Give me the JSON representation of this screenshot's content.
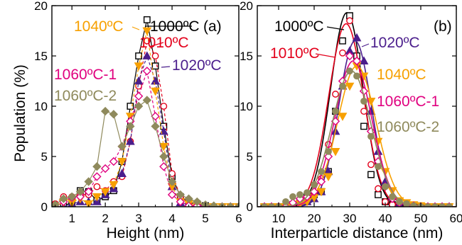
{
  "figure": {
    "ylabel": "Population (%)",
    "panels_text": [
      "(a)",
      "(b)"
    ]
  },
  "chart_data": [
    {
      "type": "line",
      "panel": "(a)",
      "xlabel": "Height (nm)",
      "ylabel": "Population (%)",
      "xlim": [
        0.4,
        6
      ],
      "ylim": [
        0,
        20
      ],
      "xticks": [
        1,
        2,
        3,
        4,
        5,
        6
      ],
      "yticks": [
        0,
        5,
        10,
        15,
        20
      ],
      "grid": false,
      "legend": "labels placed next to curves",
      "series": [
        {
          "name": "1000ºC",
          "color": "#000000",
          "marker": "square",
          "line": "solid",
          "x": [
            0.5,
            0.75,
            1.0,
            1.25,
            1.5,
            1.75,
            2.0,
            2.25,
            2.5,
            2.75,
            3.0,
            3.25,
            3.5,
            3.75,
            4.0,
            4.25,
            4.5,
            4.75,
            5.0,
            5.25,
            5.5,
            5.75,
            6.0
          ],
          "y": [
            0,
            0,
            0.5,
            1.6,
            1.5,
            0.6,
            1.0,
            1.6,
            4.5,
            10.0,
            15.0,
            18.6,
            14.0,
            8.0,
            3.0,
            1.0,
            0.4,
            0.3,
            0.1,
            0,
            0,
            0,
            0
          ]
        },
        {
          "name": "1010ºC",
          "color": "#e3001b",
          "marker": "circle",
          "line": "dash",
          "x": [
            0.5,
            0.75,
            1.0,
            1.25,
            1.5,
            1.75,
            2.0,
            2.25,
            2.5,
            2.75,
            3.0,
            3.25,
            3.5,
            3.75,
            4.0,
            4.25,
            4.5,
            4.75,
            5.0,
            5.25,
            5.5,
            5.75,
            6.0
          ],
          "y": [
            0.3,
            1.0,
            1.0,
            1.2,
            1.2,
            2.0,
            1.6,
            2.5,
            3.0,
            6.5,
            12.0,
            16.5,
            15.0,
            10.0,
            3.3,
            1.0,
            0.3,
            0.1,
            0,
            0,
            0,
            0,
            0
          ]
        },
        {
          "name": "1020ºC",
          "color": "#4b1e8c",
          "marker": "triangle-up",
          "line": "dash",
          "x": [
            0.5,
            0.75,
            1.0,
            1.25,
            1.5,
            1.75,
            2.0,
            2.25,
            2.5,
            2.75,
            3.0,
            3.25,
            3.5,
            3.75,
            4.0,
            4.25,
            4.5,
            4.75,
            5.0,
            5.25,
            5.5,
            5.75,
            6.0
          ],
          "y": [
            0,
            0,
            0.3,
            0.5,
            0.5,
            0.5,
            1.2,
            1.8,
            3.3,
            6.5,
            12.5,
            15.0,
            12.5,
            7.5,
            2.0,
            0.4,
            0.2,
            0.2,
            0.1,
            0,
            0,
            0,
            0
          ]
        },
        {
          "name": "1040ºC",
          "color": "#f7a000",
          "marker": "triangle-down",
          "line": "dash",
          "x": [
            0.5,
            0.75,
            1.0,
            1.25,
            1.5,
            1.75,
            2.0,
            2.25,
            2.5,
            2.75,
            3.0,
            3.25,
            3.5,
            3.75,
            4.0,
            4.25,
            4.5,
            4.75,
            5.0,
            5.25,
            5.5,
            5.75,
            6.0
          ],
          "y": [
            0,
            0.4,
            0.4,
            0.8,
            0.3,
            1.0,
            1.5,
            2.2,
            4.5,
            9.0,
            14.0,
            17.5,
            11.5,
            6.0,
            2.0,
            0.5,
            0.3,
            0.1,
            0,
            0,
            0,
            0,
            0
          ]
        },
        {
          "name": "1060ºC-1",
          "color": "#e0007f",
          "marker": "diamond-open",
          "line": "dash",
          "x": [
            0.5,
            0.75,
            1.0,
            1.25,
            1.5,
            1.75,
            2.0,
            2.25,
            2.5,
            2.75,
            3.0,
            3.25,
            3.5,
            3.75,
            4.0,
            4.25,
            4.5,
            4.75,
            5.0,
            5.25,
            5.5,
            5.75,
            6.0
          ],
          "y": [
            0,
            0.5,
            0.9,
            1.0,
            1.5,
            3.0,
            3.8,
            4.5,
            6.0,
            8.5,
            11.0,
            13.5,
            9.0,
            4.0,
            1.2,
            0.5,
            0.1,
            0.1,
            0,
            0,
            0,
            0,
            0
          ]
        },
        {
          "name": "1060ºC-2",
          "color": "#8f8a5c",
          "marker": "diamond",
          "line": "solid",
          "x": [
            0.5,
            0.75,
            1.0,
            1.25,
            1.5,
            1.75,
            2.0,
            2.25,
            2.5,
            2.75,
            3.0,
            3.25,
            3.5,
            3.75,
            4.0,
            4.25,
            4.5,
            4.75,
            5.0,
            5.25,
            5.5,
            5.75,
            6.0
          ],
          "y": [
            0.2,
            0.8,
            1.0,
            1.5,
            2.5,
            4.0,
            9.5,
            9.2,
            6.0,
            8.0,
            10.0,
            10.6,
            8.0,
            5.0,
            2.5,
            1.2,
            0.8,
            0.5,
            0.2,
            0.1,
            0,
            0,
            0
          ]
        }
      ],
      "annotations": [
        {
          "text": "1000ºC",
          "series": "1000ºC"
        },
        {
          "text": "1010ºC",
          "series": "1010ºC"
        },
        {
          "text": "1020ºC",
          "series": "1020ºC"
        },
        {
          "text": "1040ºC",
          "series": "1040ºC"
        },
        {
          "text": "1060ºC-1",
          "series": "1060ºC-1"
        },
        {
          "text": "1060ºC-2",
          "series": "1060ºC-2"
        }
      ]
    },
    {
      "type": "scatter",
      "panel": "(b)",
      "xlabel": "Interparticle distance (nm)",
      "ylabel": "",
      "xlim": [
        4,
        60
      ],
      "ylim": [
        0,
        20
      ],
      "xticks": [
        10,
        20,
        30,
        40,
        50,
        60
      ],
      "yticks": [
        0,
        5,
        10,
        15,
        20
      ],
      "grid": false,
      "legend": "labels placed next to curves",
      "fits": "gaussian curves through each series",
      "series": [
        {
          "name": "1000ºC",
          "color": "#000000",
          "marker": "square",
          "center": 29.2,
          "width": 4.6,
          "peak": 19.3,
          "x": [
            6,
            8,
            10,
            12,
            14,
            16,
            18,
            20,
            22,
            24,
            26,
            28,
            30,
            32,
            34,
            36,
            38,
            40,
            42,
            44,
            46,
            48,
            50,
            52,
            54,
            56,
            58
          ],
          "y": [
            0,
            0,
            0,
            0,
            0.2,
            0.5,
            1.0,
            1.2,
            1.5,
            3.5,
            9.5,
            16.5,
            19.0,
            15.0,
            8.0,
            3.2,
            1.2,
            0.5,
            0.2,
            0,
            0,
            0,
            0,
            0,
            0,
            0,
            0
          ]
        },
        {
          "name": "1010ºC",
          "color": "#e3001b",
          "marker": "circle",
          "center": 29.0,
          "width": 4.9,
          "peak": 18.2,
          "x": [
            6,
            8,
            10,
            12,
            14,
            16,
            18,
            20,
            22,
            24,
            26,
            28,
            30,
            32,
            34,
            36,
            38,
            40,
            42,
            44,
            46,
            48,
            50,
            52,
            54,
            56,
            58
          ],
          "y": [
            0,
            0,
            0,
            0.1,
            0.3,
            0.5,
            0.7,
            1.2,
            2.8,
            6.2,
            11.2,
            15.3,
            18.5,
            14.5,
            9.5,
            4.2,
            1.8,
            0.5,
            0.2,
            0,
            0,
            0,
            0,
            0,
            0,
            0,
            0
          ]
        },
        {
          "name": "1020ºC",
          "color": "#4b1e8c",
          "marker": "triangle-up",
          "center": 31.5,
          "width": 4.6,
          "peak": 16.5,
          "x": [
            6,
            8,
            10,
            12,
            14,
            16,
            18,
            20,
            22,
            24,
            26,
            28,
            30,
            32,
            34,
            36,
            38,
            40,
            42,
            44,
            46,
            48,
            50,
            52,
            54,
            56,
            58
          ],
          "y": [
            0,
            0,
            0,
            0,
            0.1,
            0.2,
            0.5,
            0.8,
            1.5,
            3.5,
            7.5,
            12.0,
            15.5,
            16.8,
            14.5,
            9.5,
            5.5,
            2.5,
            1.0,
            0.3,
            0.1,
            0,
            0,
            0,
            0,
            0,
            0
          ]
        },
        {
          "name": "1040ºC",
          "color": "#f7a000",
          "marker": "triangle-down",
          "center": 32.0,
          "width": 5.4,
          "peak": 14.0,
          "x": [
            6,
            8,
            10,
            12,
            14,
            16,
            18,
            20,
            22,
            24,
            26,
            28,
            30,
            32,
            34,
            36,
            38,
            40,
            42,
            44,
            46,
            48,
            50,
            52,
            54,
            56,
            58
          ],
          "y": [
            0,
            0,
            0,
            0,
            0,
            0.3,
            0.5,
            0.9,
            1.5,
            3.0,
            5.5,
            9.0,
            12.0,
            14.0,
            13.0,
            10.5,
            6.5,
            3.5,
            1.6,
            0.6,
            0.4,
            0.2,
            0.1,
            0,
            0,
            0,
            0
          ]
        },
        {
          "name": "1060ºC-1",
          "color": "#e0007f",
          "marker": "diamond-open",
          "center": 31.0,
          "width": 5.2,
          "peak": 14.5,
          "x": [
            6,
            8,
            10,
            12,
            14,
            16,
            18,
            20,
            22,
            24,
            26,
            28,
            30,
            32,
            34,
            36,
            38,
            40,
            42,
            44,
            46,
            48,
            50,
            52,
            54,
            56,
            58
          ],
          "y": [
            0,
            0,
            0,
            0,
            0.4,
            0.8,
            1.0,
            1.5,
            2.5,
            5.0,
            8.5,
            12.5,
            15.0,
            14.5,
            11.5,
            7.5,
            4.5,
            2.0,
            0.8,
            0.4,
            0.2,
            0.1,
            0,
            0,
            0,
            0,
            0
          ]
        },
        {
          "name": "1060ºC-2",
          "color": "#8f8a5c",
          "marker": "circle-filled",
          "center": 30.5,
          "width": 5.5,
          "peak": 13.5,
          "x": [
            6,
            8,
            10,
            12,
            14,
            16,
            18,
            20,
            22,
            24,
            26,
            28,
            30,
            32,
            34,
            36,
            38,
            40,
            42,
            44,
            46,
            48,
            50,
            52,
            54,
            56,
            58
          ],
          "y": [
            0,
            0,
            0,
            0.5,
            1.0,
            1.2,
            1.4,
            2.2,
            3.5,
            5.5,
            9.5,
            12.0,
            13.5,
            13.0,
            10.5,
            7.0,
            4.0,
            2.0,
            1.0,
            0.5,
            0.3,
            0.1,
            0,
            0,
            0,
            0,
            0
          ]
        }
      ],
      "annotations": [
        {
          "text": "1000ºC",
          "series": "1000ºC"
        },
        {
          "text": "1010ºC",
          "series": "1010ºC"
        },
        {
          "text": "1020ºC",
          "series": "1020ºC"
        },
        {
          "text": "1040ºC",
          "series": "1040ºC"
        },
        {
          "text": "1060ºC-1",
          "series": "1060ºC-1"
        },
        {
          "text": "1060ºC-2",
          "series": "1060ºC-2"
        }
      ]
    }
  ]
}
